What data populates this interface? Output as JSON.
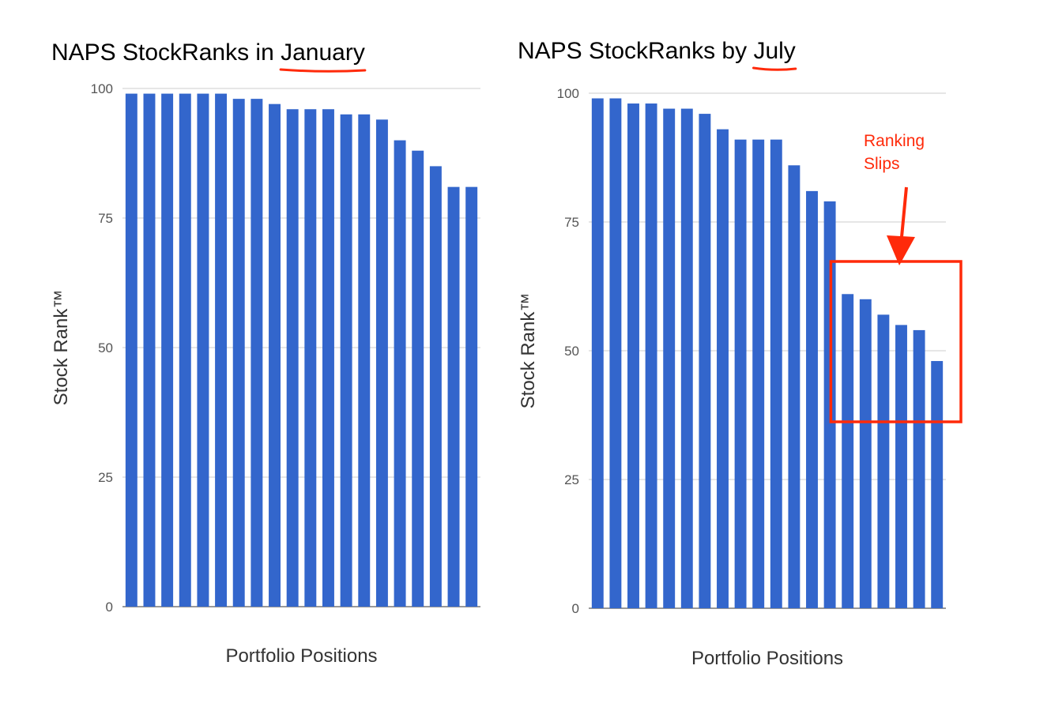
{
  "chart_data": [
    {
      "type": "bar",
      "title_prefix": "NAPS StockRanks in ",
      "title_emphasis": "January",
      "xlabel": "Portfolio Positions",
      "ylabel": "Stock Rank™",
      "ylim": [
        0,
        100
      ],
      "yticks": [
        "0",
        "25",
        "50",
        "75",
        "100"
      ],
      "grid": true,
      "color": "#3366cc",
      "values": [
        99,
        99,
        99,
        99,
        99,
        99,
        98,
        98,
        97,
        96,
        96,
        96,
        95,
        95,
        94,
        90,
        88,
        85,
        81,
        81
      ]
    },
    {
      "type": "bar",
      "title_prefix": "NAPS StockRanks by ",
      "title_emphasis": "July",
      "xlabel": "Portfolio Positions",
      "ylabel": "Stock Rank™",
      "ylim": [
        0,
        100
      ],
      "yticks": [
        "0",
        "25",
        "50",
        "75",
        "100"
      ],
      "grid": true,
      "color": "#3366cc",
      "values": [
        99,
        99,
        98,
        98,
        97,
        97,
        96,
        93,
        91,
        91,
        91,
        86,
        81,
        79,
        61,
        60,
        57,
        55,
        54,
        48
      ],
      "annotation": {
        "lines": [
          "Ranking",
          "Slips"
        ],
        "color": "#ff2a0a",
        "highlight_from_index": 14
      }
    }
  ]
}
